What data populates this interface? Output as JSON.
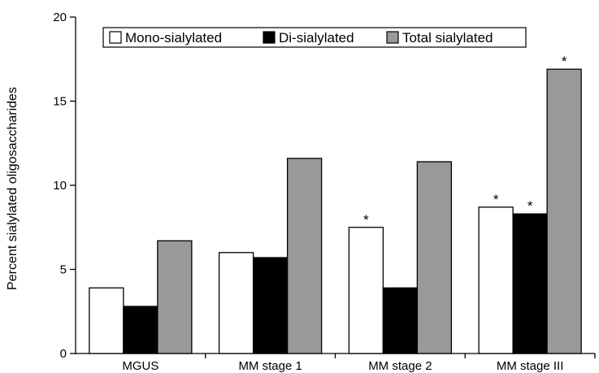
{
  "chart_data": {
    "type": "bar",
    "title": "",
    "xlabel": "",
    "ylabel": "Percent sialylated oligosaccharides",
    "ylim": [
      0,
      20
    ],
    "yticks": [
      0,
      5,
      10,
      15,
      20
    ],
    "grid": false,
    "legend_position": "top",
    "categories": [
      "MGUS",
      "MM stage 1",
      "MM stage 2",
      "MM stage III"
    ],
    "series": [
      {
        "name": "Mono-sialylated",
        "color": "#ffffff",
        "values": [
          3.9,
          6.0,
          7.5,
          8.7
        ],
        "significant": [
          false,
          false,
          true,
          true
        ]
      },
      {
        "name": "Di-sialylated",
        "color": "#000000",
        "values": [
          2.8,
          5.7,
          3.9,
          8.3
        ],
        "significant": [
          false,
          false,
          false,
          true
        ]
      },
      {
        "name": "Total sialylated",
        "color": "#999999",
        "values": [
          6.7,
          11.6,
          11.4,
          16.9
        ],
        "significant": [
          false,
          false,
          false,
          true
        ]
      }
    ],
    "significance_marker": "*"
  }
}
